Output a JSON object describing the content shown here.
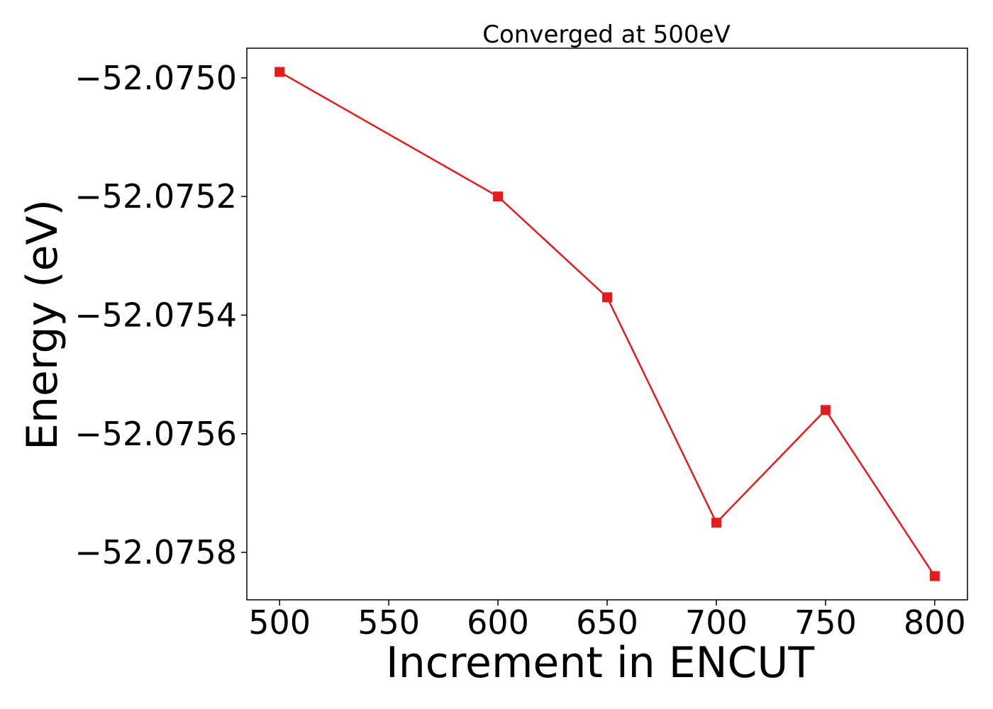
{
  "chart_data": {
    "type": "line",
    "title": "Converged at 500eV",
    "xlabel": "Increment in ENCUT",
    "ylabel": "Energy (eV)",
    "x": [
      500,
      600,
      650,
      700,
      750,
      800
    ],
    "series": [
      {
        "values": [
          -52.07499,
          -52.0752,
          -52.07537,
          -52.07575,
          -52.07556,
          -52.07584
        ]
      }
    ],
    "x_ticks": [
      500,
      550,
      600,
      650,
      700,
      750,
      800
    ],
    "x_tick_labels": [
      "500",
      "550",
      "600",
      "650",
      "700",
      "750",
      "800"
    ],
    "y_ticks": [
      -52.075,
      -52.0752,
      -52.0754,
      -52.0756,
      -52.0758
    ],
    "y_tick_labels": [
      "−52.0750",
      "−52.0752",
      "−52.0754",
      "−52.0756",
      "−52.0758"
    ],
    "xlim": [
      485,
      815
    ],
    "ylim": [
      -52.07588,
      -52.07495
    ],
    "grid": false,
    "line_color": "#e41a1c",
    "marker": "square"
  }
}
